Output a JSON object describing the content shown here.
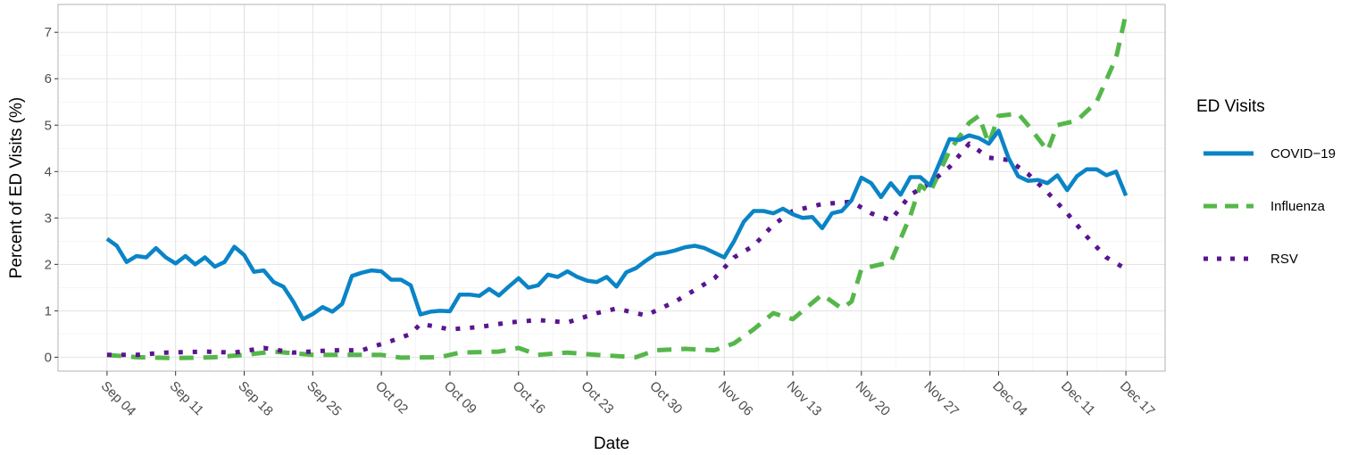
{
  "chart_data": {
    "type": "line",
    "xlabel": "Date",
    "ylabel": "Percent of ED Visits (%)",
    "ylim": [
      -0.3,
      7.6
    ],
    "yticks": [
      0,
      1,
      2,
      3,
      4,
      5,
      6,
      7
    ],
    "xlim": [
      "2023-08-30",
      "2023-12-21"
    ],
    "xticks": [
      {
        "date": "2023-09-04",
        "label": "Sep 04"
      },
      {
        "date": "2023-09-11",
        "label": "Sep 11"
      },
      {
        "date": "2023-09-18",
        "label": "Sep 18"
      },
      {
        "date": "2023-09-25",
        "label": "Sep 25"
      },
      {
        "date": "2023-10-02",
        "label": "Oct 02"
      },
      {
        "date": "2023-10-09",
        "label": "Oct 09"
      },
      {
        "date": "2023-10-16",
        "label": "Oct 16"
      },
      {
        "date": "2023-10-23",
        "label": "Oct 23"
      },
      {
        "date": "2023-10-30",
        "label": "Oct 30"
      },
      {
        "date": "2023-11-06",
        "label": "Nov 06"
      },
      {
        "date": "2023-11-13",
        "label": "Nov 13"
      },
      {
        "date": "2023-11-20",
        "label": "Nov 20"
      },
      {
        "date": "2023-11-27",
        "label": "Nov 27"
      },
      {
        "date": "2023-12-04",
        "label": "Dec 04"
      },
      {
        "date": "2023-12-11",
        "label": "Dec 11"
      },
      {
        "date": "2023-12-17",
        "label": "Dec 17"
      }
    ],
    "grid": true,
    "legend": {
      "title": "ED Visits",
      "position": "right"
    },
    "series": [
      {
        "name": "COVID−19",
        "color": "#0a84c6",
        "dash": "solid",
        "points": [
          [
            "2023-09-04",
            2.55
          ],
          [
            "2023-09-05",
            2.4
          ],
          [
            "2023-09-06",
            2.05
          ],
          [
            "2023-09-07",
            2.18
          ],
          [
            "2023-09-08",
            2.15
          ],
          [
            "2023-09-09",
            2.35
          ],
          [
            "2023-09-10",
            2.15
          ],
          [
            "2023-09-11",
            2.02
          ],
          [
            "2023-09-12",
            2.18
          ],
          [
            "2023-09-13",
            2.0
          ],
          [
            "2023-09-14",
            2.15
          ],
          [
            "2023-09-15",
            1.95
          ],
          [
            "2023-09-16",
            2.05
          ],
          [
            "2023-09-17",
            2.38
          ],
          [
            "2023-09-18",
            2.2
          ],
          [
            "2023-09-19",
            1.84
          ],
          [
            "2023-09-20",
            1.87
          ],
          [
            "2023-09-21",
            1.62
          ],
          [
            "2023-09-22",
            1.52
          ],
          [
            "2023-09-23",
            1.2
          ],
          [
            "2023-09-24",
            0.82
          ],
          [
            "2023-09-25",
            0.93
          ],
          [
            "2023-09-26",
            1.08
          ],
          [
            "2023-09-27",
            0.98
          ],
          [
            "2023-09-28",
            1.15
          ],
          [
            "2023-09-29",
            1.75
          ],
          [
            "2023-09-30",
            1.82
          ],
          [
            "2023-10-01",
            1.87
          ],
          [
            "2023-10-02",
            1.85
          ],
          [
            "2023-10-03",
            1.67
          ],
          [
            "2023-10-04",
            1.67
          ],
          [
            "2023-10-05",
            1.55
          ],
          [
            "2023-10-06",
            0.92
          ],
          [
            "2023-10-07",
            0.98
          ],
          [
            "2023-10-08",
            1.0
          ],
          [
            "2023-10-09",
            0.99
          ],
          [
            "2023-10-10",
            1.35
          ],
          [
            "2023-10-11",
            1.35
          ],
          [
            "2023-10-12",
            1.32
          ],
          [
            "2023-10-13",
            1.47
          ],
          [
            "2023-10-14",
            1.33
          ],
          [
            "2023-10-15",
            1.52
          ],
          [
            "2023-10-16",
            1.7
          ],
          [
            "2023-10-17",
            1.5
          ],
          [
            "2023-10-18",
            1.55
          ],
          [
            "2023-10-19",
            1.78
          ],
          [
            "2023-10-20",
            1.73
          ],
          [
            "2023-10-21",
            1.85
          ],
          [
            "2023-10-22",
            1.73
          ],
          [
            "2023-10-23",
            1.65
          ],
          [
            "2023-10-24",
            1.62
          ],
          [
            "2023-10-25",
            1.73
          ],
          [
            "2023-10-26",
            1.52
          ],
          [
            "2023-10-27",
            1.83
          ],
          [
            "2023-10-28",
            1.92
          ],
          [
            "2023-10-29",
            2.08
          ],
          [
            "2023-10-30",
            2.22
          ],
          [
            "2023-10-31",
            2.25
          ],
          [
            "2023-11-01",
            2.3
          ],
          [
            "2023-11-02",
            2.37
          ],
          [
            "2023-11-03",
            2.4
          ],
          [
            "2023-11-04",
            2.35
          ],
          [
            "2023-11-05",
            2.25
          ],
          [
            "2023-11-06",
            2.15
          ],
          [
            "2023-11-07",
            2.5
          ],
          [
            "2023-11-08",
            2.92
          ],
          [
            "2023-11-09",
            3.15
          ],
          [
            "2023-11-10",
            3.15
          ],
          [
            "2023-11-11",
            3.1
          ],
          [
            "2023-11-12",
            3.2
          ],
          [
            "2023-11-13",
            3.08
          ],
          [
            "2023-11-14",
            3.0
          ],
          [
            "2023-11-15",
            3.02
          ],
          [
            "2023-11-16",
            2.78
          ],
          [
            "2023-11-17",
            3.1
          ],
          [
            "2023-11-18",
            3.15
          ],
          [
            "2023-11-19",
            3.38
          ],
          [
            "2023-11-20",
            3.87
          ],
          [
            "2023-11-21",
            3.75
          ],
          [
            "2023-11-22",
            3.45
          ],
          [
            "2023-11-23",
            3.75
          ],
          [
            "2023-11-24",
            3.5
          ],
          [
            "2023-11-25",
            3.88
          ],
          [
            "2023-11-26",
            3.88
          ],
          [
            "2023-11-27",
            3.7
          ],
          [
            "2023-11-28",
            4.2
          ],
          [
            "2023-11-29",
            4.7
          ],
          [
            "2023-11-30",
            4.68
          ],
          [
            "2023-12-01",
            4.78
          ],
          [
            "2023-12-02",
            4.72
          ],
          [
            "2023-12-03",
            4.6
          ],
          [
            "2023-12-04",
            4.88
          ],
          [
            "2023-12-05",
            4.3
          ],
          [
            "2023-12-06",
            3.9
          ],
          [
            "2023-12-07",
            3.8
          ],
          [
            "2023-12-08",
            3.82
          ],
          [
            "2023-12-09",
            3.75
          ],
          [
            "2023-12-10",
            3.92
          ],
          [
            "2023-12-11",
            3.6
          ],
          [
            "2023-12-12",
            3.9
          ],
          [
            "2023-12-13",
            4.05
          ],
          [
            "2023-12-14",
            4.05
          ],
          [
            "2023-12-15",
            3.92
          ],
          [
            "2023-12-16",
            4.0
          ],
          [
            "2023-12-17",
            3.48
          ]
        ]
      },
      {
        "name": "Influenza",
        "color": "#55b74a",
        "dash": "dashed",
        "points": [
          [
            "2023-09-04",
            0.05
          ],
          [
            "2023-09-07",
            0.0
          ],
          [
            "2023-09-11",
            -0.02
          ],
          [
            "2023-09-15",
            0.0
          ],
          [
            "2023-09-18",
            0.05
          ],
          [
            "2023-09-21",
            0.12
          ],
          [
            "2023-09-25",
            0.05
          ],
          [
            "2023-09-28",
            0.05
          ],
          [
            "2023-10-02",
            0.05
          ],
          [
            "2023-10-04",
            -0.01
          ],
          [
            "2023-10-08",
            0.0
          ],
          [
            "2023-10-10",
            0.1
          ],
          [
            "2023-10-14",
            0.12
          ],
          [
            "2023-10-16",
            0.2
          ],
          [
            "2023-10-18",
            0.05
          ],
          [
            "2023-10-21",
            0.1
          ],
          [
            "2023-10-24",
            0.05
          ],
          [
            "2023-10-28",
            0.0
          ],
          [
            "2023-10-30",
            0.15
          ],
          [
            "2023-11-02",
            0.18
          ],
          [
            "2023-11-05",
            0.15
          ],
          [
            "2023-11-07",
            0.3
          ],
          [
            "2023-11-09",
            0.6
          ],
          [
            "2023-11-11",
            0.95
          ],
          [
            "2023-11-13",
            0.82
          ],
          [
            "2023-11-16",
            1.35
          ],
          [
            "2023-11-18",
            1.05
          ],
          [
            "2023-11-19",
            1.2
          ],
          [
            "2023-11-20",
            1.9
          ],
          [
            "2023-11-23",
            2.05
          ],
          [
            "2023-11-25",
            3.05
          ],
          [
            "2023-11-26",
            3.7
          ],
          [
            "2023-11-27",
            3.55
          ],
          [
            "2023-11-29",
            4.45
          ],
          [
            "2023-12-01",
            5.05
          ],
          [
            "2023-12-02",
            5.2
          ],
          [
            "2023-12-03",
            4.6
          ],
          [
            "2023-12-04",
            5.2
          ],
          [
            "2023-12-06",
            5.25
          ],
          [
            "2023-12-07",
            5.0
          ],
          [
            "2023-12-09",
            4.45
          ],
          [
            "2023-12-10",
            5.0
          ],
          [
            "2023-12-11",
            5.05
          ],
          [
            "2023-12-12",
            5.1
          ],
          [
            "2023-12-14",
            5.5
          ],
          [
            "2023-12-16",
            6.45
          ],
          [
            "2023-12-17",
            7.4
          ]
        ]
      },
      {
        "name": "RSV",
        "color": "#5a1590",
        "dash": "dotted",
        "points": [
          [
            "2023-09-04",
            0.05
          ],
          [
            "2023-09-07",
            0.05
          ],
          [
            "2023-09-10",
            0.1
          ],
          [
            "2023-09-14",
            0.12
          ],
          [
            "2023-09-17",
            0.1
          ],
          [
            "2023-09-20",
            0.2
          ],
          [
            "2023-09-23",
            0.1
          ],
          [
            "2023-09-27",
            0.15
          ],
          [
            "2023-09-30",
            0.15
          ],
          [
            "2023-10-03",
            0.35
          ],
          [
            "2023-10-05",
            0.5
          ],
          [
            "2023-10-06",
            0.72
          ],
          [
            "2023-10-09",
            0.6
          ],
          [
            "2023-10-12",
            0.65
          ],
          [
            "2023-10-15",
            0.75
          ],
          [
            "2023-10-18",
            0.8
          ],
          [
            "2023-10-21",
            0.75
          ],
          [
            "2023-10-24",
            0.95
          ],
          [
            "2023-10-26",
            1.05
          ],
          [
            "2023-10-29",
            0.9
          ],
          [
            "2023-11-01",
            1.2
          ],
          [
            "2023-11-03",
            1.45
          ],
          [
            "2023-11-05",
            1.7
          ],
          [
            "2023-11-07",
            2.15
          ],
          [
            "2023-11-09",
            2.4
          ],
          [
            "2023-11-11",
            2.85
          ],
          [
            "2023-11-13",
            3.15
          ],
          [
            "2023-11-16",
            3.3
          ],
          [
            "2023-11-19",
            3.35
          ],
          [
            "2023-11-21",
            3.1
          ],
          [
            "2023-11-23",
            2.95
          ],
          [
            "2023-11-25",
            3.5
          ],
          [
            "2023-11-27",
            3.75
          ],
          [
            "2023-11-29",
            4.1
          ],
          [
            "2023-12-01",
            4.6
          ],
          [
            "2023-12-03",
            4.3
          ],
          [
            "2023-12-05",
            4.25
          ],
          [
            "2023-12-07",
            3.95
          ],
          [
            "2023-12-09",
            3.55
          ],
          [
            "2023-12-11",
            3.1
          ],
          [
            "2023-12-13",
            2.6
          ],
          [
            "2023-12-15",
            2.15
          ],
          [
            "2023-12-17",
            1.9
          ]
        ]
      }
    ]
  }
}
